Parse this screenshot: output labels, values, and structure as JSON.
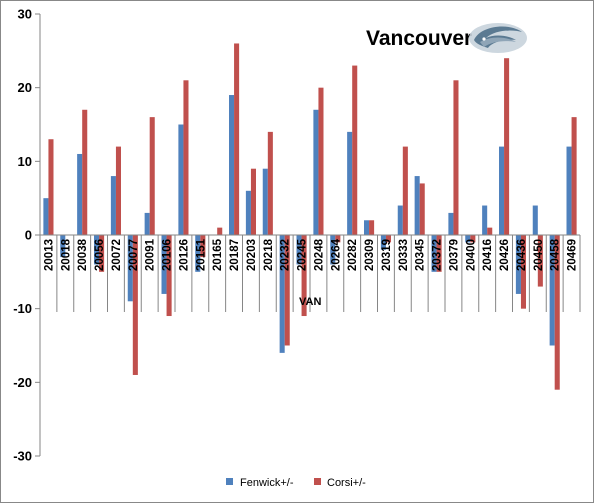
{
  "chart_data": {
    "type": "bar",
    "title": "Vancouver",
    "xlabel": "",
    "ylabel": "",
    "annotation": "VAN",
    "ylim": [
      -30,
      30
    ],
    "yticks": [
      -30,
      -20,
      -10,
      0,
      10,
      20,
      30
    ],
    "grid": false,
    "legend_position": "bottom",
    "logo": "vancouver-canucks-orca-logo",
    "categories": [
      "20013",
      "20018",
      "20038",
      "20056",
      "20072",
      "20077",
      "20091",
      "20106",
      "20126",
      "20151",
      "20165",
      "20187",
      "20203",
      "20218",
      "20232",
      "20245",
      "20248",
      "20264",
      "20282",
      "20309",
      "20319",
      "20333",
      "20345",
      "20372",
      "20379",
      "20400",
      "20416",
      "20426",
      "20436",
      "20450",
      "20458",
      "20469"
    ],
    "series": [
      {
        "name": "Fenwick+/-",
        "color": "#4F81BD",
        "values": [
          5,
          -3,
          11,
          -4,
          8,
          -9,
          3,
          -8,
          15,
          -5,
          0,
          19,
          6,
          9,
          -16,
          -4,
          17,
          -4,
          14,
          2,
          -2,
          4,
          8,
          -5,
          3,
          -1,
          4,
          12,
          -8,
          4,
          -15,
          12
        ]
      },
      {
        "name": "Corsi+/-",
        "color": "#C0504D",
        "values": [
          13,
          0,
          17,
          -5,
          12,
          -19,
          16,
          -11,
          21,
          -3,
          1,
          26,
          9,
          14,
          -15,
          -11,
          20,
          -1,
          23,
          2,
          -1,
          12,
          7,
          -5,
          21,
          -1,
          1,
          24,
          -10,
          -7,
          -21,
          16
        ]
      }
    ]
  }
}
